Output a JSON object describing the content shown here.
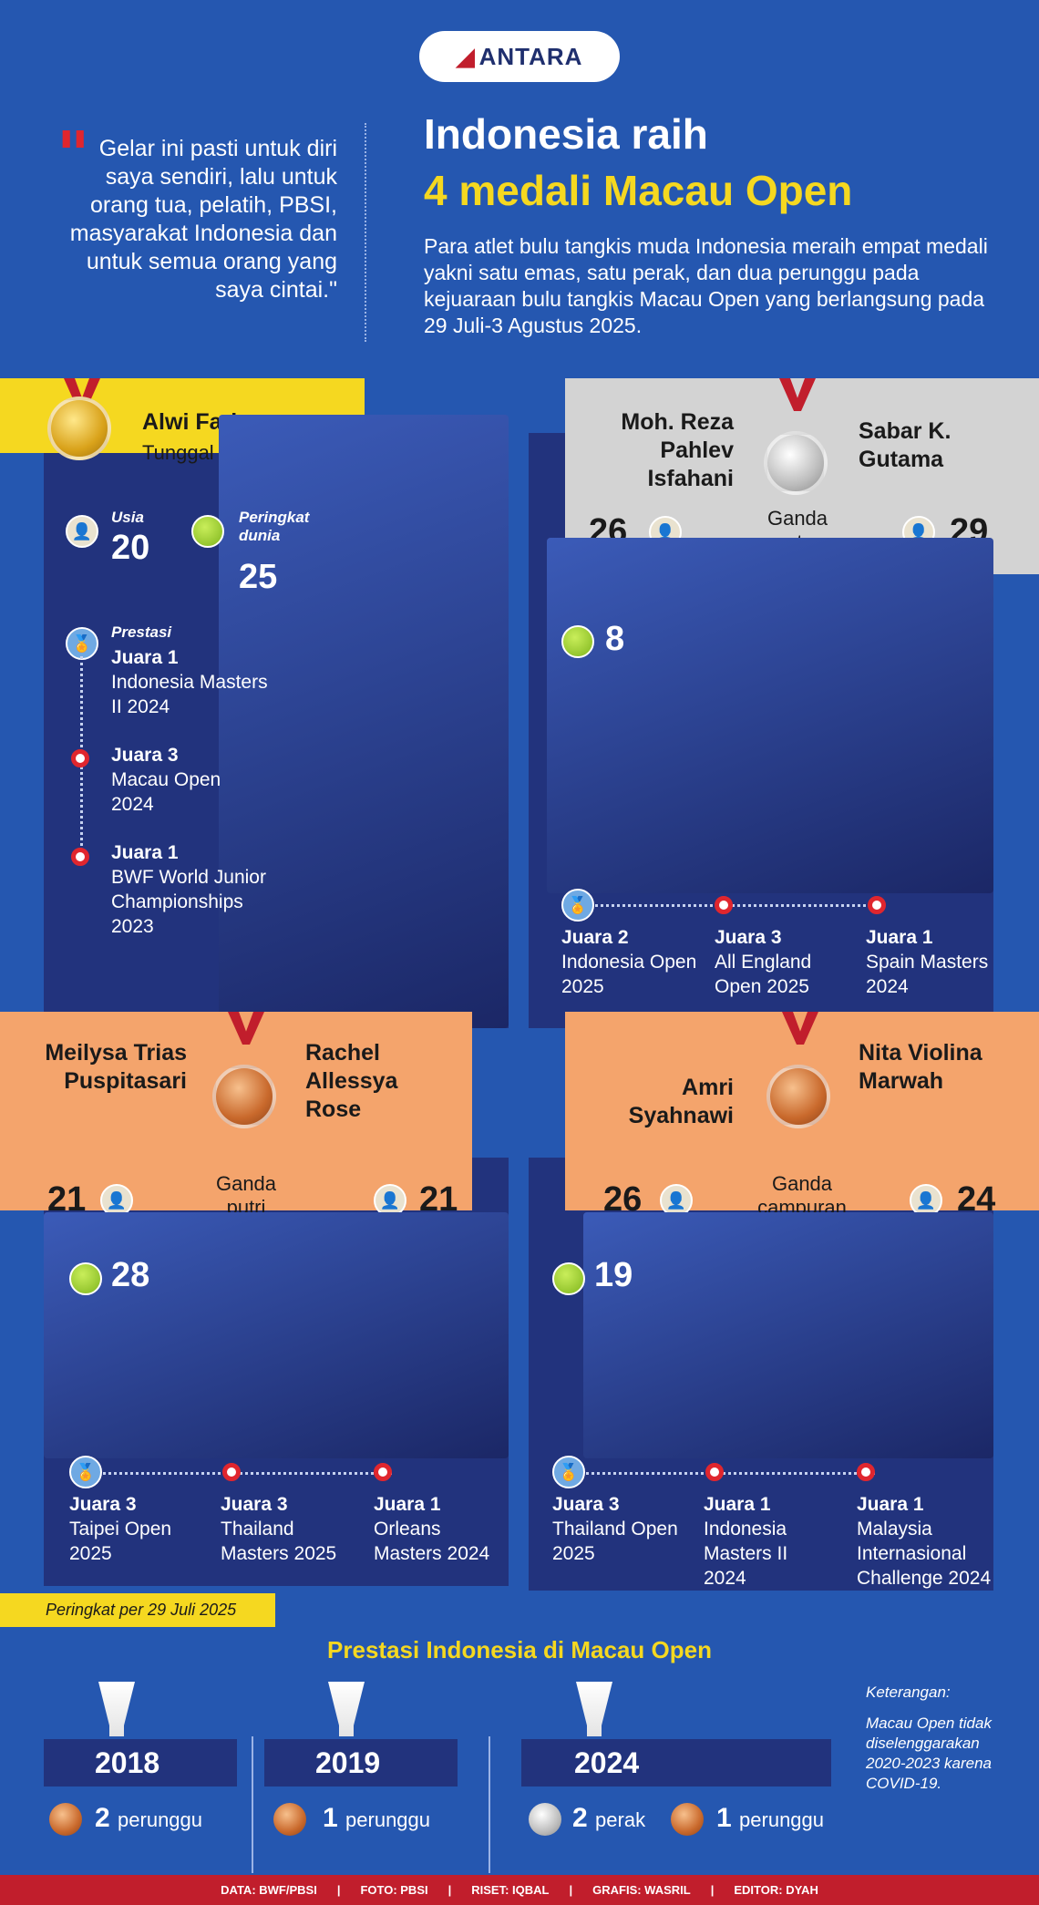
{
  "brand": {
    "logo": "ANTARA",
    "accent": "#c11e2c"
  },
  "quote": "Gelar ini pasti untuk diri saya sendiri, lalu untuk orang tua, pelatih, PBSI, masyarakat Indonesia dan untuk semua orang yang saya cintai.\"",
  "title": {
    "line1": "Indonesia raih",
    "line2": "4 medali Macau Open"
  },
  "intro": "Para atlet bulu tangkis muda Indonesia meraih empat medali yakni satu emas, satu perak, dan dua perunggu pada kejuaraan bulu tangkis Macau Open yang berlangsung pada 29 Juli-3 Agustus 2025.",
  "p1": {
    "name": "Alwi Farhan",
    "event": "Tunggal putra",
    "medal": "gold",
    "age_label": "Usia",
    "age": "20",
    "rank_label": "Peringkat dunia",
    "rank": "25",
    "ach_label": "Prestasi",
    "ach": [
      {
        "t": "Juara 1",
        "d": "Indonesia Masters II 2024"
      },
      {
        "t": "Juara 3",
        "d": "Macau Open 2024"
      },
      {
        "t": "Juara 1",
        "d": "BWF World Junior Championships 2023"
      }
    ]
  },
  "p2": {
    "name1": "Moh. Reza Pahlev Isfahani",
    "name2": "Sabar K. Gutama",
    "event": "Ganda putra",
    "medal": "silver",
    "age1": "26",
    "age2": "29",
    "rank": "8",
    "ach": [
      {
        "t": "Juara 2",
        "d": "Indonesia Open 2025"
      },
      {
        "t": "Juara 3",
        "d": "All England Open 2025"
      },
      {
        "t": "Juara 1",
        "d": "Spain Masters 2024"
      }
    ]
  },
  "p3": {
    "name1": "Meilysa Trias Puspitasari",
    "name2": "Rachel Allessya Rose",
    "event": "Ganda putri",
    "medal": "bronze",
    "age1": "21",
    "age2": "21",
    "rank": "28",
    "ach": [
      {
        "t": "Juara 3",
        "d": "Taipei Open 2025"
      },
      {
        "t": "Juara 3",
        "d": "Thailand Masters 2025"
      },
      {
        "t": "Juara 1",
        "d": "Orleans Masters 2024"
      }
    ]
  },
  "p4": {
    "name1": "Amri Syahnawi",
    "name2": "Nita Violina Marwah",
    "event": "Ganda campuran",
    "medal": "bronze",
    "age1": "26",
    "age2": "24",
    "rank": "19",
    "ach": [
      {
        "t": "Juara 3",
        "d": "Thailand Open 2025"
      },
      {
        "t": "Juara 1",
        "d": "Indonesia Masters II 2024"
      },
      {
        "t": "Juara 1",
        "d": "Malaysia Internasional Challenge 2024"
      }
    ]
  },
  "rank_note": "Peringkat per 29 Juli 2025",
  "history": {
    "title": "Prestasi Indonesia di Macau Open",
    "years": [
      {
        "year": "2018",
        "medals": [
          {
            "type": "bronze",
            "n": "2",
            "label": "perunggu"
          }
        ]
      },
      {
        "year": "2019",
        "medals": [
          {
            "type": "bronze",
            "n": "1",
            "label": "perunggu"
          }
        ]
      },
      {
        "year": "2024",
        "medals": [
          {
            "type": "silver",
            "n": "2",
            "label": "perak"
          },
          {
            "type": "bronze",
            "n": "1",
            "label": "perunggu"
          }
        ]
      }
    ],
    "note_label": "Keterangan:",
    "note": "Macau Open tidak diselenggarakan 2020-2023 karena COVID-19."
  },
  "credits": [
    "DATA: BWF/PBSI",
    "FOTO: PBSI",
    "RISET: IQBAL",
    "GRAFIS: WASRIL",
    "EDITOR: DYAH"
  ]
}
